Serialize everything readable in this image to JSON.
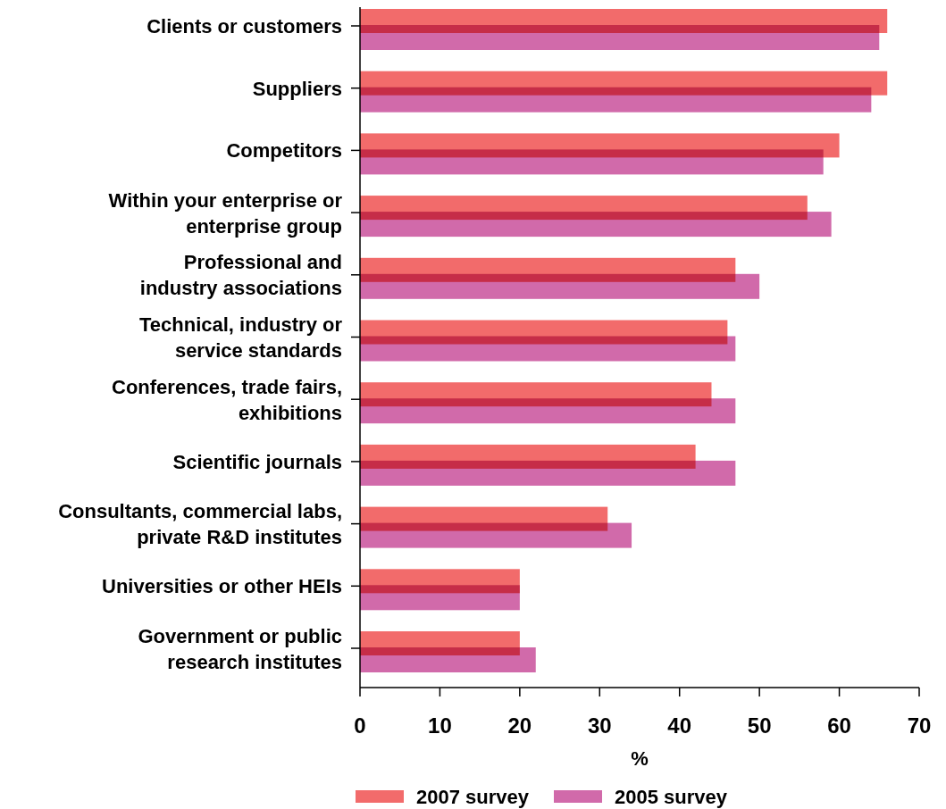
{
  "chart_data": {
    "type": "bar",
    "orientation": "horizontal",
    "xlabel": "%",
    "categories": [
      "Clients or customers",
      "Suppliers",
      "Competitors",
      "Within your enterprise or\nenterprise group",
      "Professional and\nindustry associations",
      "Technical, industry or\nservice standards",
      "Conferences, trade fairs,\nexhibitions",
      "Scientific journals",
      "Consultants, commercial labs,\nprivate R&D institutes",
      "Universities or other HEIs",
      "Government or public\nresearch institutes"
    ],
    "series": [
      {
        "name": "2007 survey",
        "color": "#f26b6b",
        "values": [
          66,
          66,
          60,
          56,
          47,
          46,
          44,
          42,
          31,
          20,
          20
        ]
      },
      {
        "name": "2005 survey",
        "color": "#d16aaa",
        "values": [
          65,
          64,
          58,
          59,
          50,
          47,
          47,
          47,
          34,
          20,
          22
        ]
      }
    ],
    "xlim": [
      0,
      70
    ],
    "xticks": [
      0,
      10,
      20,
      30,
      40,
      50,
      60,
      70
    ],
    "grid": false,
    "legend": "bottom"
  }
}
